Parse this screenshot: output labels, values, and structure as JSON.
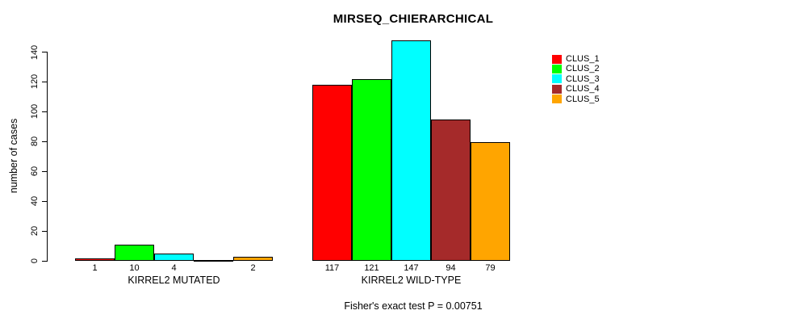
{
  "chart_data": {
    "type": "bar",
    "title": "MIRSEQ_CHIERARCHICAL",
    "ylabel": "number of cases",
    "footnote": "Fisher's exact test P = 0.00751",
    "ylim": [
      0,
      140
    ],
    "yticks": [
      0,
      20,
      40,
      60,
      80,
      100,
      120,
      140
    ],
    "grid": false,
    "legend_position": "top-right",
    "bar_outline_color": "#000000",
    "clusters": [
      {
        "name": "CLUS_1",
        "color": "#FF0000"
      },
      {
        "name": "CLUS_2",
        "color": "#00FF00"
      },
      {
        "name": "CLUS_3",
        "color": "#00FFFF"
      },
      {
        "name": "CLUS_4",
        "color": "#A52A2A"
      },
      {
        "name": "CLUS_5",
        "color": "#FFA500"
      }
    ],
    "groups": [
      {
        "label": "KIRREL2 MUTATED",
        "values": [
          1,
          10,
          4,
          0,
          2
        ],
        "bar_labels": [
          "1",
          "10",
          "4",
          "",
          "2"
        ]
      },
      {
        "label": "KIRREL2 WILD-TYPE",
        "values": [
          117,
          121,
          147,
          94,
          79
        ],
        "bar_labels": [
          "117",
          "121",
          "147",
          "94",
          "79"
        ]
      }
    ]
  }
}
